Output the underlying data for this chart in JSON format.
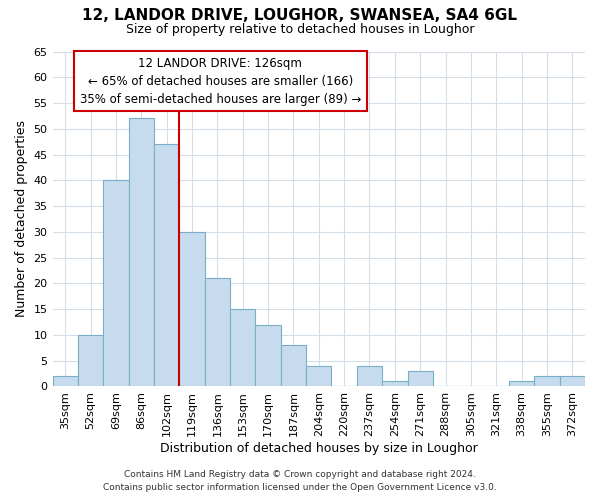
{
  "title": "12, LANDOR DRIVE, LOUGHOR, SWANSEA, SA4 6GL",
  "subtitle": "Size of property relative to detached houses in Loughor",
  "xlabel": "Distribution of detached houses by size in Loughor",
  "ylabel": "Number of detached properties",
  "bar_labels": [
    "35sqm",
    "52sqm",
    "69sqm",
    "86sqm",
    "102sqm",
    "119sqm",
    "136sqm",
    "153sqm",
    "170sqm",
    "187sqm",
    "204sqm",
    "220sqm",
    "237sqm",
    "254sqm",
    "271sqm",
    "288sqm",
    "305sqm",
    "321sqm",
    "338sqm",
    "355sqm",
    "372sqm"
  ],
  "bar_values": [
    2,
    10,
    40,
    52,
    47,
    30,
    21,
    15,
    12,
    8,
    4,
    0,
    4,
    1,
    3,
    0,
    0,
    0,
    1,
    2,
    2
  ],
  "bar_color": "#c6dcee",
  "bar_edge_color": "#7aaec8",
  "vline_index": 5,
  "ylim": [
    0,
    65
  ],
  "yticks": [
    0,
    5,
    10,
    15,
    20,
    25,
    30,
    35,
    40,
    45,
    50,
    55,
    60,
    65
  ],
  "annotation_title": "12 LANDOR DRIVE: 126sqm",
  "annotation_line1": "← 65% of detached houses are smaller (166)",
  "annotation_line2": "35% of semi-detached houses are larger (89) →",
  "annotation_box_facecolor": "#ffffff",
  "annotation_box_edgecolor": "#cc0000",
  "vline_color": "#cc0000",
  "footer1": "Contains HM Land Registry data © Crown copyright and database right 2024.",
  "footer2": "Contains public sector information licensed under the Open Government Licence v3.0.",
  "bg_color": "#ffffff",
  "title_fontsize": 11,
  "subtitle_fontsize": 9,
  "ylabel_fontsize": 9,
  "xlabel_fontsize": 9,
  "tick_fontsize": 8,
  "ann_fontsize": 8.5,
  "footer_fontsize": 6.5
}
